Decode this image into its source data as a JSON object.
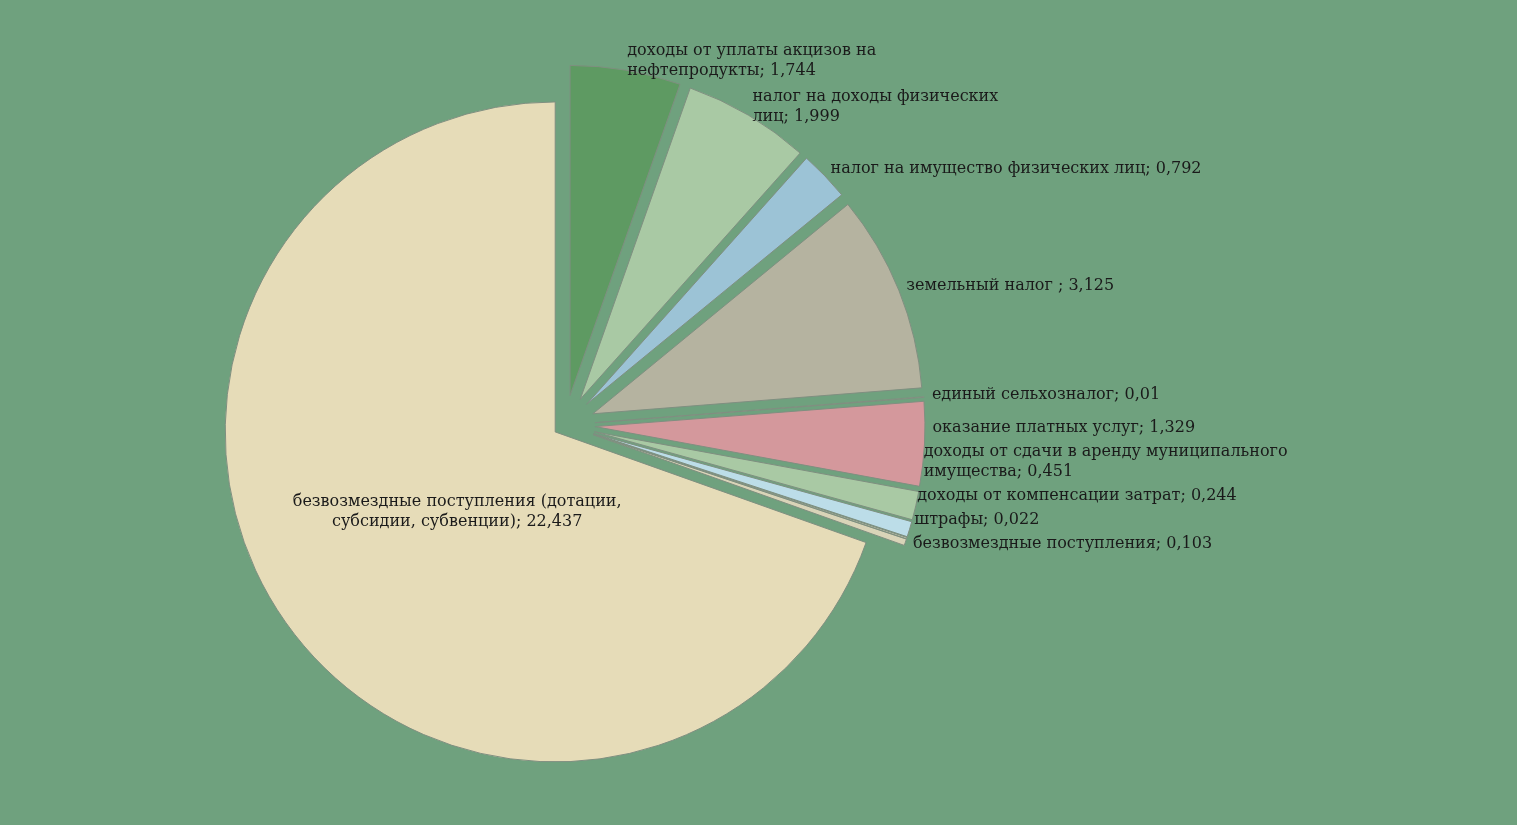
{
  "chart_data": {
    "type": "pie",
    "categories": [
      "доходы от уплаты акцизов на нефтепродукты",
      "налог на доходы физических лиц",
      "налог на имущество физических лиц",
      "земельный налог ",
      "единый сельхозналог",
      "оказание платных услуг",
      "доходы от сдачи в аренду муниципального имущества",
      "доходы от компенсации затрат",
      "штрафы",
      "безвозмездные поступления",
      "безвозмездные поступления (дотации, субсидии, субвенции)"
    ],
    "values": [
      1.744,
      1.999,
      0.792,
      3.125,
      0.01,
      1.329,
      0.451,
      0.244,
      0.022,
      0.103,
      22.437
    ],
    "value_labels": [
      "1,744",
      "1,999",
      "0,792",
      "3,125",
      "0,01",
      "1,329",
      "0,451",
      "0,244",
      "0,022",
      "0,103",
      "22,437"
    ],
    "colors": [
      "#5e9a62",
      "#a9c9a4",
      "#9cc3d6",
      "#b5b3a0",
      "#c9c6b0",
      "#d4989c",
      "#a9c9a4",
      "#bcdde8",
      "#d9d4b8",
      "#d9d4b8",
      "#e6dcb8"
    ]
  }
}
